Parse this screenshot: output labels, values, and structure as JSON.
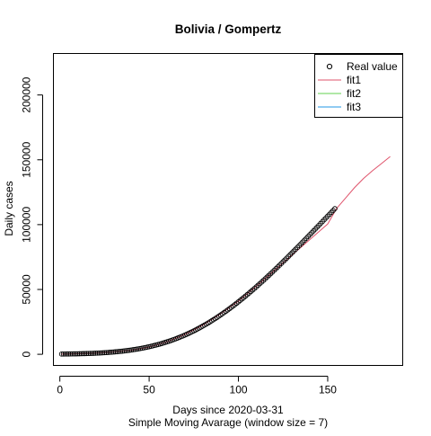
{
  "chart_data": {
    "type": "scatter",
    "title": "Bolivia / Gompertz",
    "xlabel": "Days since 2020-03-31",
    "subtitle": "Simple Moving Avarage (window size = 7)",
    "ylabel": "Daily cases",
    "xlim": [
      -3.6,
      192
    ],
    "ylim": [
      -8600,
      232000
    ],
    "x_ticks": [
      0,
      50,
      100,
      150
    ],
    "y_ticks": [
      0,
      50000,
      100000,
      150000,
      200000
    ],
    "grid": false,
    "legend_position": "top-right",
    "legend": [
      {
        "label": "Real value",
        "kind": "point",
        "color": "#000000"
      },
      {
        "label": "fit1",
        "kind": "line",
        "color": "#DF536B"
      },
      {
        "label": "fit2",
        "kind": "line",
        "color": "#61D04F"
      },
      {
        "label": "fit3",
        "kind": "line",
        "color": "#2297E6"
      }
    ],
    "series": [
      {
        "name": "Real value",
        "kind": "points",
        "color": "#000000",
        "x": [
          1,
          2,
          3,
          4,
          5,
          6,
          7,
          8,
          9,
          10,
          11,
          12,
          13,
          14,
          15,
          16,
          17,
          18,
          19,
          20,
          21,
          22,
          23,
          24,
          25,
          26,
          27,
          28,
          29,
          30,
          31,
          32,
          33,
          34,
          35,
          36,
          37,
          38,
          39,
          40,
          41,
          42,
          43,
          44,
          45,
          46,
          47,
          48,
          49,
          50,
          51,
          52,
          53,
          54,
          55,
          56,
          57,
          58,
          59,
          60,
          61,
          62,
          63,
          64,
          65,
          66,
          67,
          68,
          69,
          70,
          71,
          72,
          73,
          74,
          75,
          76,
          77,
          78,
          79,
          80,
          81,
          82,
          83,
          84,
          85,
          86,
          87,
          88,
          89,
          90,
          91,
          92,
          93,
          94,
          95,
          96,
          97,
          98,
          99,
          100,
          101,
          102,
          103,
          104,
          105,
          106,
          107,
          108,
          109,
          110,
          111,
          112,
          113,
          114,
          115,
          116,
          117,
          118,
          119,
          120,
          121,
          122,
          123,
          124,
          125,
          126,
          127,
          128,
          129,
          130,
          131,
          132,
          133,
          134,
          135,
          136,
          137,
          138,
          139,
          140,
          141,
          142,
          143,
          144,
          145,
          146,
          147,
          148,
          149,
          150,
          151,
          152,
          153,
          154
        ],
        "y": [
          108,
          117,
          127,
          138,
          150,
          162,
          176,
          191,
          207,
          225,
          244,
          264,
          286,
          310,
          336,
          364,
          393,
          425,
          459,
          496,
          535,
          577,
          622,
          669,
          720,
          774,
          831,
          892,
          957,
          1025,
          1097,
          1174,
          1255,
          1340,
          1429,
          1524,
          1623,
          1727,
          1837,
          1952,
          2072,
          2198,
          2330,
          2468,
          2612,
          2763,
          2920,
          3084,
          3255,
          3433,
          3618,
          3810,
          4010,
          4218,
          4433,
          4657,
          4889,
          5129,
          5378,
          5636,
          5902,
          6177,
          6462,
          6755,
          7058,
          7371,
          7693,
          8024,
          8365,
          8716,
          9077,
          9448,
          9829,
          10219,
          10620,
          11031,
          11452,
          11882,
          12323,
          12774,
          13234,
          13705,
          14186,
          14676,
          15176,
          15686,
          16205,
          16734,
          17273,
          17821,
          18379,
          18945,
          19521,
          20106,
          20700,
          21303,
          21914,
          22534,
          23163,
          23800,
          24445,
          25098,
          25759,
          26428,
          27104,
          27788,
          28479,
          29178,
          29883,
          30595,
          31314,
          32039,
          32771,
          33509,
          34253,
          35003,
          35758,
          36519,
          37285,
          38057,
          38833,
          39614,
          40400,
          41190,
          41984,
          42783,
          43585,
          44391,
          45200,
          46013,
          46829,
          47647,
          48469,
          49293,
          50120,
          50948,
          51779,
          52612,
          53446,
          54282,
          55119,
          55957,
          56797,
          57637,
          58478,
          59320,
          60162,
          61004,
          61847,
          62690,
          63532,
          64374,
          65216,
          66057
        ],
        "y_scale": 1.7
      },
      {
        "name": "fit1",
        "kind": "line",
        "color": "#DF536B",
        "x": [
          1,
          10,
          20,
          30,
          40,
          50,
          60,
          70,
          80,
          90,
          100,
          110,
          120,
          130,
          140,
          150,
          155,
          160,
          165,
          170,
          175,
          180,
          185
        ],
        "y": [
          150,
          400,
          900,
          1800,
          3200,
          5600,
          9600,
          15200,
          22500,
          31200,
          41000,
          52500,
          64500,
          76500,
          88500,
          100500,
          112500,
          120500,
          128500,
          135500,
          141500,
          147000,
          152500
        ]
      }
    ]
  }
}
